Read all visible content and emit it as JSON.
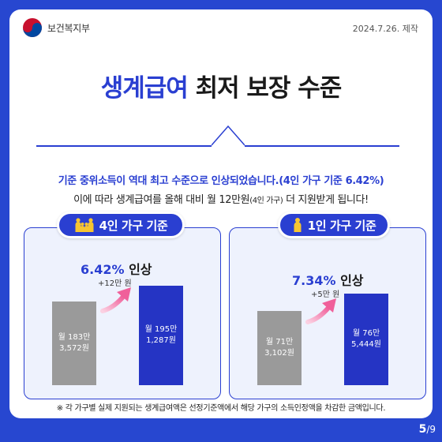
{
  "header": {
    "org_name": "보건복지부",
    "date": "2024.7.26. 제작"
  },
  "title": {
    "highlight": "생계급여",
    "rest": "최저 보장 수준"
  },
  "description": {
    "line1_main": "기준 중위소득이 역대 최고 수준으로 인상되었습니다.",
    "line1_note": "(4인 가구 기준 6.42%)",
    "line2_a": "이에 따라 생계급여를 올해 대비 월 12만원",
    "line2_small": "(4인 가구)",
    "line2_b": " 더 지원받게 됩니다!"
  },
  "panels": [
    {
      "label": "4인 가구 기준",
      "icon": "family-icon",
      "rate_pct": "6.42%",
      "rate_word": " 인상",
      "increase": "+12만 원",
      "prev_line1": "월 183만",
      "prev_line2": "3,572원",
      "next_line1": "월 195만",
      "next_line2": "1,287원"
    },
    {
      "label": "1인 가구 기준",
      "icon": "person-icon",
      "rate_pct": "7.34%",
      "rate_word": " 인상",
      "increase": "+5만 원",
      "prev_line1": "월 71만",
      "prev_line2": "3,102원",
      "next_line1": "월 76만",
      "next_line2": "5,444원"
    }
  ],
  "footnote": "※ 각 가구별 실제 지원되는 생계급여액은 선정기준액에서 해당 가구의 소득인정액을 차감한 금액입니다.",
  "pagination": {
    "current": "5",
    "total": "/9"
  },
  "colors": {
    "accent": "#2a3fd1",
    "bar_prev": "#9a9a9a",
    "bar_next": "#2534c4",
    "arrow": "#f0609a"
  }
}
